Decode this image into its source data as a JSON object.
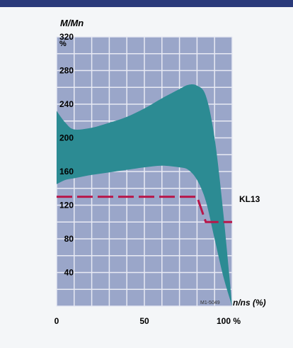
{
  "chart_data": {
    "type": "area",
    "ylabel_main": "M/Mn",
    "ylabel_unit": "%",
    "x_axis_label": "n/ns (%)",
    "x_ticks": [
      "0",
      "50",
      "100 %"
    ],
    "y_ticks": [
      40,
      80,
      120,
      160,
      200,
      240,
      280,
      320
    ],
    "y_ticks_labels": [
      "40",
      "80",
      "120",
      "160",
      "200",
      "240",
      "280",
      "320"
    ],
    "xlim": [
      0,
      100
    ],
    "ylim": [
      0,
      320
    ],
    "grid": true,
    "band_series": {
      "x": [
        0,
        5,
        10,
        20,
        30,
        40,
        50,
        60,
        70,
        75,
        80,
        85,
        90,
        95,
        100
      ],
      "upper": [
        232,
        218,
        210,
        212,
        218,
        225,
        235,
        247,
        258,
        263,
        262,
        250,
        200,
        110,
        0
      ],
      "lower": [
        145,
        150,
        152,
        156,
        159,
        162,
        165,
        167,
        165,
        162,
        150,
        125,
        80,
        35,
        0
      ]
    },
    "threshold_series": {
      "name": "KL13",
      "x": [
        0,
        80,
        85,
        100
      ],
      "y": [
        130,
        130,
        100,
        100
      ]
    },
    "annotation": "M1-5049",
    "colors": {
      "background": "#f4f6f8",
      "plot_area": "#9aa6c9",
      "grid": "#e8eaf4",
      "band": "#2c8b93",
      "threshold": "#b8174a",
      "header": "#2a3a7a",
      "text": "#000000"
    }
  }
}
